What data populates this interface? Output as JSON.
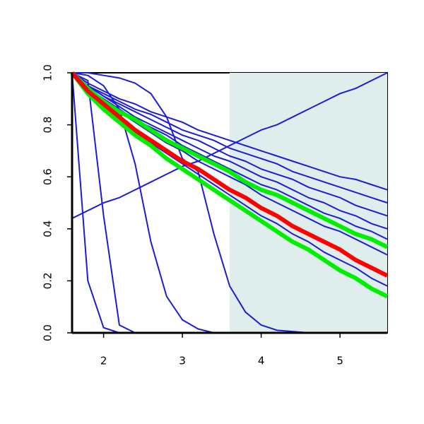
{
  "chart_data": {
    "type": "line",
    "x": [
      1.6,
      1.8,
      2.0,
      2.2,
      2.4,
      2.6,
      2.8,
      3.0,
      3.2,
      3.4,
      3.6,
      3.8,
      4.0,
      4.2,
      4.4,
      4.6,
      4.8,
      5.0,
      5.2,
      5.4,
      5.6
    ],
    "xlim": [
      1.6,
      5.6
    ],
    "ylim": [
      0,
      1
    ],
    "xticks": [
      2,
      3,
      4,
      5
    ],
    "yticks": [
      {
        "value": 0,
        "label": "0.0"
      },
      0.2,
      0.4,
      0.6,
      0.8,
      {
        "value": 1,
        "label": "1.0"
      }
    ],
    "highlight_x": [
      3.6,
      5.6
    ],
    "highlight_color": "#e0eded",
    "series": [
      {
        "color": "#1c1cd8",
        "values": [
          1,
          0.2,
          0.02,
          0,
          0,
          0,
          0,
          0,
          0,
          0,
          0,
          0,
          0,
          0,
          0,
          0,
          0,
          0,
          0,
          0,
          0
        ]
      },
      {
        "color": "#1c1cd8",
        "values": [
          1,
          0.97,
          0.45,
          0.03,
          0,
          0,
          0,
          0,
          0,
          0,
          0,
          0,
          0,
          0,
          0,
          0,
          0,
          0,
          0,
          0,
          0
        ]
      },
      {
        "color": "#1c1cd8",
        "values": [
          1,
          0.99,
          0.95,
          0.86,
          0.65,
          0.35,
          0.14,
          0.05,
          0.015,
          0,
          0,
          0,
          0,
          0,
          0,
          0,
          0,
          0,
          0,
          0,
          0
        ]
      },
      {
        "color": "#1c1cd8",
        "values": [
          1,
          1,
          0.99,
          0.98,
          0.96,
          0.92,
          0.83,
          0.67,
          0.62,
          0.38,
          0.18,
          0.08,
          0.03,
          0.01,
          0.005,
          0,
          0,
          0,
          0,
          0,
          0
        ]
      },
      {
        "color": "#1c1cd8",
        "values": [
          0.44,
          0.47,
          0.5,
          0.52,
          0.55,
          0.58,
          0.61,
          0.64,
          0.66,
          0.69,
          0.72,
          0.75,
          0.78,
          0.8,
          0.83,
          0.86,
          0.89,
          0.92,
          0.94,
          0.97,
          1
        ]
      },
      {
        "color": "#1c1cd8",
        "values": [
          1,
          0.96,
          0.93,
          0.9,
          0.88,
          0.85,
          0.83,
          0.81,
          0.78,
          0.76,
          0.74,
          0.72,
          0.7,
          0.68,
          0.66,
          0.64,
          0.62,
          0.6,
          0.59,
          0.57,
          0.55
        ]
      },
      {
        "color": "#1c1cd8",
        "values": [
          1,
          0.95,
          0.92,
          0.89,
          0.86,
          0.84,
          0.81,
          0.78,
          0.76,
          0.74,
          0.71,
          0.69,
          0.67,
          0.65,
          0.62,
          0.6,
          0.58,
          0.56,
          0.54,
          0.52,
          0.5
        ]
      },
      {
        "color": "#1c1cd8",
        "values": [
          1,
          0.95,
          0.91,
          0.88,
          0.85,
          0.82,
          0.79,
          0.76,
          0.74,
          0.71,
          0.68,
          0.66,
          0.63,
          0.61,
          0.59,
          0.56,
          0.54,
          0.52,
          0.49,
          0.47,
          0.45
        ]
      },
      {
        "color": "#1c1cd8",
        "values": [
          1,
          0.95,
          0.91,
          0.87,
          0.83,
          0.8,
          0.77,
          0.74,
          0.71,
          0.68,
          0.66,
          0.63,
          0.6,
          0.58,
          0.55,
          0.52,
          0.5,
          0.47,
          0.45,
          0.42,
          0.4
        ]
      },
      {
        "color": "#1c1cd8",
        "values": [
          1,
          0.94,
          0.9,
          0.86,
          0.82,
          0.79,
          0.76,
          0.72,
          0.69,
          0.66,
          0.63,
          0.6,
          0.57,
          0.55,
          0.52,
          0.49,
          0.46,
          0.44,
          0.41,
          0.39,
          0.36
        ]
      },
      {
        "color": "#1c1cd8",
        "values": [
          1,
          0.94,
          0.89,
          0.85,
          0.81,
          0.77,
          0.73,
          0.7,
          0.66,
          0.63,
          0.6,
          0.57,
          0.53,
          0.5,
          0.47,
          0.44,
          0.41,
          0.39,
          0.36,
          0.33,
          0.3
        ]
      },
      {
        "color": "#1c1cd8",
        "values": [
          1,
          0.93,
          0.87,
          0.82,
          0.77,
          0.73,
          0.69,
          0.65,
          0.61,
          0.57,
          0.53,
          0.49,
          0.45,
          0.42,
          0.38,
          0.35,
          0.31,
          0.28,
          0.25,
          0.21,
          0.18
        ]
      },
      {
        "color": "#00ee00",
        "emphasis": true,
        "values": [
          1,
          0.94,
          0.89,
          0.85,
          0.82,
          0.78,
          0.74,
          0.71,
          0.68,
          0.65,
          0.62,
          0.58,
          0.55,
          0.53,
          0.5,
          0.47,
          0.44,
          0.41,
          0.38,
          0.36,
          0.33
        ]
      },
      {
        "color": "#00ee00",
        "emphasis": true,
        "values": [
          1,
          0.92,
          0.86,
          0.81,
          0.76,
          0.72,
          0.67,
          0.63,
          0.59,
          0.55,
          0.51,
          0.47,
          0.43,
          0.39,
          0.35,
          0.32,
          0.28,
          0.24,
          0.21,
          0.17,
          0.14
        ]
      },
      {
        "color": "#ff0000",
        "emphasis": true,
        "values": [
          1,
          0.93,
          0.88,
          0.83,
          0.78,
          0.74,
          0.7,
          0.66,
          0.63,
          0.59,
          0.55,
          0.52,
          0.48,
          0.45,
          0.41,
          0.38,
          0.35,
          0.32,
          0.28,
          0.25,
          0.22
        ]
      }
    ]
  }
}
